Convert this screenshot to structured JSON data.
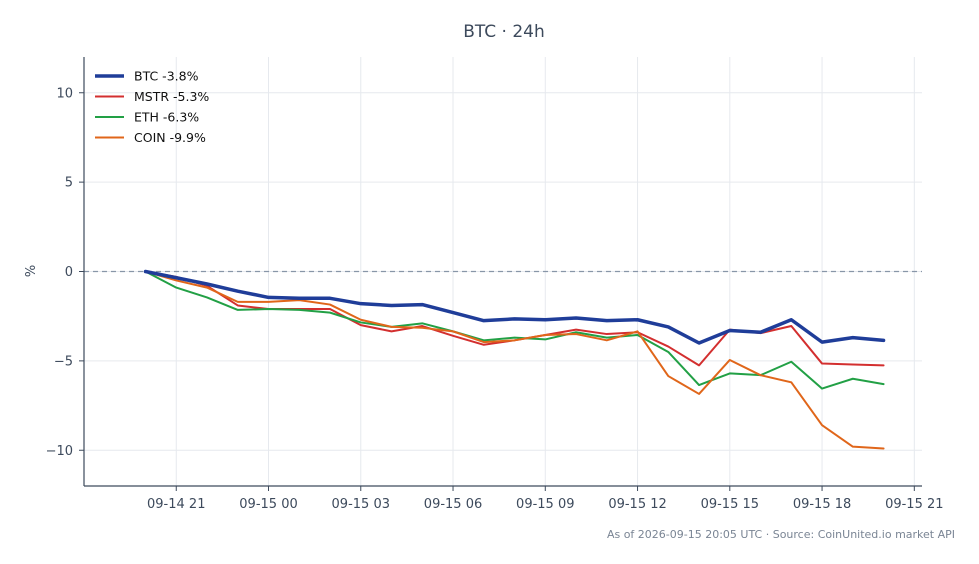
{
  "chart_data": {
    "type": "line",
    "title": "BTC · 24h",
    "xlabel": "",
    "ylabel": "%",
    "ylim": [
      -12,
      12
    ],
    "xlim": [
      "2026-09-14 18:00",
      "2026-09-15 21:15"
    ],
    "xticks": [
      "2026-09-14 21:00",
      "2026-09-15 00:00",
      "2026-09-15 03:00",
      "2026-09-15 06:00",
      "2026-09-15 09:00",
      "2026-09-15 12:00",
      "2026-09-15 15:00",
      "2026-09-15 18:00",
      "2026-09-15 21:00"
    ],
    "xtick_labels": [
      "09-14 21",
      "09-15 00",
      "09-15 03",
      "09-15 06",
      "09-15 09",
      "09-15 12",
      "09-15 15",
      "09-15 18",
      "09-15 21"
    ],
    "yticks": [
      10,
      5,
      0,
      -5,
      -10
    ],
    "ytick_labels": [
      "10",
      "5",
      "0",
      "−5",
      "−10"
    ],
    "grid": true,
    "legend_position": "top-left",
    "reference_line": {
      "y": 0,
      "style": "dashed"
    },
    "x": [
      "2026-09-14 20:00",
      "2026-09-14 21:00",
      "2026-09-14 22:00",
      "2026-09-14 23:00",
      "2026-09-15 00:00",
      "2026-09-15 01:00",
      "2026-09-15 02:00",
      "2026-09-15 03:00",
      "2026-09-15 04:00",
      "2026-09-15 05:00",
      "2026-09-15 06:00",
      "2026-09-15 07:00",
      "2026-09-15 08:00",
      "2026-09-15 09:00",
      "2026-09-15 10:00",
      "2026-09-15 11:00",
      "2026-09-15 12:00",
      "2026-09-15 13:00",
      "2026-09-15 14:00",
      "2026-09-15 15:00",
      "2026-09-15 16:00",
      "2026-09-15 17:00",
      "2026-09-15 18:00",
      "2026-09-15 19:00",
      "2026-09-15 20:00"
    ],
    "series": [
      {
        "name": "BTC -3.8%",
        "color": "#1f3d99",
        "width": 3.5,
        "values": [
          0,
          -0.35,
          -0.7,
          -1.1,
          -1.45,
          -1.5,
          -1.5,
          -1.8,
          -1.9,
          -1.85,
          -2.3,
          -2.75,
          -2.65,
          -2.7,
          -2.6,
          -2.75,
          -2.7,
          -3.1,
          -4.0,
          -3.3,
          -3.4,
          -2.7,
          -3.95,
          -3.7,
          -3.85
        ]
      },
      {
        "name": "MSTR -5.3%",
        "color": "#d32f2f",
        "width": 2,
        "values": [
          0,
          -0.3,
          -0.8,
          -1.9,
          -2.1,
          -2.1,
          -2.1,
          -3.0,
          -3.35,
          -3.05,
          -3.6,
          -4.1,
          -3.85,
          -3.55,
          -3.25,
          -3.5,
          -3.4,
          -4.2,
          -5.25,
          -3.25,
          -3.45,
          -3.05,
          -5.15,
          -5.2,
          -5.25
        ]
      },
      {
        "name": "ETH -6.3%",
        "color": "#22a045",
        "width": 2,
        "values": [
          0,
          -0.9,
          -1.45,
          -2.15,
          -2.1,
          -2.15,
          -2.3,
          -2.85,
          -3.1,
          -2.9,
          -3.35,
          -3.85,
          -3.7,
          -3.8,
          -3.4,
          -3.7,
          -3.55,
          -4.5,
          -6.35,
          -5.7,
          -5.8,
          -5.05,
          -6.55,
          -6.0,
          -6.3
        ]
      },
      {
        "name": "COIN -9.9%",
        "color": "#e0661a",
        "width": 2,
        "values": [
          0,
          -0.5,
          -0.9,
          -1.7,
          -1.7,
          -1.6,
          -1.85,
          -2.7,
          -3.1,
          -3.15,
          -3.35,
          -3.95,
          -3.85,
          -3.55,
          -3.5,
          -3.85,
          -3.35,
          -5.85,
          -6.85,
          -4.95,
          -5.8,
          -6.2,
          -8.6,
          -9.8,
          -9.9
        ]
      }
    ],
    "source": "As of 2026-09-15 20:05 UTC · Source: CoinUnited.io market API"
  }
}
